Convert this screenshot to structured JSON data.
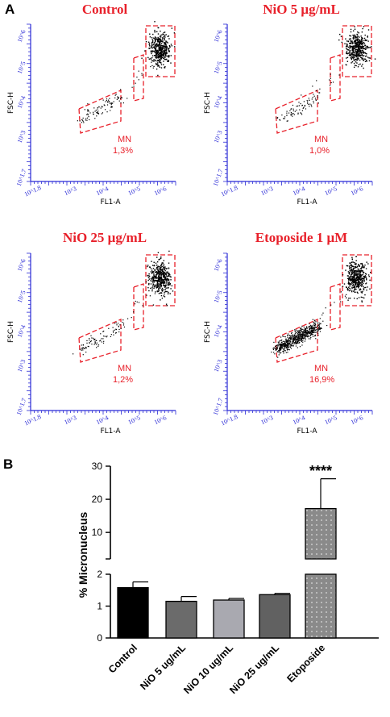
{
  "panels": {
    "a_label": "A",
    "b_label": "B"
  },
  "colors": {
    "title_red": "#e8202a",
    "axis_blue": "#2b2bd6",
    "gate_red": "#e8202a"
  },
  "flow_plots": [
    {
      "title": "Control",
      "mn_label": "MN",
      "mn_value": "1,3%",
      "xlabel": "FL1-A",
      "ylabel": "FSC-H",
      "mn_percent": 1.3
    },
    {
      "title": "NiO 5 μg/mL",
      "mn_label": "MN",
      "mn_value": "1,0%",
      "xlabel": "FL1-A",
      "ylabel": "FSC-H",
      "mn_percent": 1.0
    },
    {
      "title": "NiO 25 μg/mL",
      "mn_label": "MN",
      "mn_value": "1,2%",
      "xlabel": "FL1-A",
      "ylabel": "FSC-H",
      "mn_percent": 1.2
    },
    {
      "title": "Etoposide 1 μM",
      "mn_label": "MN",
      "mn_value": "16,9%",
      "xlabel": "FL1-A",
      "ylabel": "FSC-H",
      "mn_percent": 16.9
    }
  ],
  "flow_axis_ticks": {
    "x": [
      "10^1.8",
      "10^3",
      "10^4",
      "10^5",
      "10^6"
    ],
    "y": [
      "10^1.7",
      "10^3",
      "10^4",
      "10^5",
      "10^6"
    ]
  },
  "chart_data": {
    "type": "bar",
    "title": "",
    "xlabel": "",
    "ylabel": "% Micronucleus",
    "categories": [
      "Control",
      "NiO 5 ug/mL",
      "NiO 10 ug/mL",
      "NiO 25 ug/mL",
      "Etoposide"
    ],
    "values": [
      1.58,
      1.15,
      1.19,
      1.36,
      17.2
    ],
    "errors": [
      0.18,
      0.15,
      0.05,
      0.04,
      9.0
    ],
    "bar_colors": [
      "#000000",
      "#6b6b6b",
      "#a9a9b0",
      "#616161",
      "#8a8a8a"
    ],
    "y_axis_broken": true,
    "ylim_lower": [
      0,
      2
    ],
    "ylim_upper": [
      2,
      30
    ],
    "yticks_lower": [
      "0",
      "1",
      "2"
    ],
    "yticks_upper": [
      "10",
      "20",
      "30"
    ],
    "annotations": [
      {
        "category": "Etoposide",
        "text": "****"
      }
    ]
  }
}
